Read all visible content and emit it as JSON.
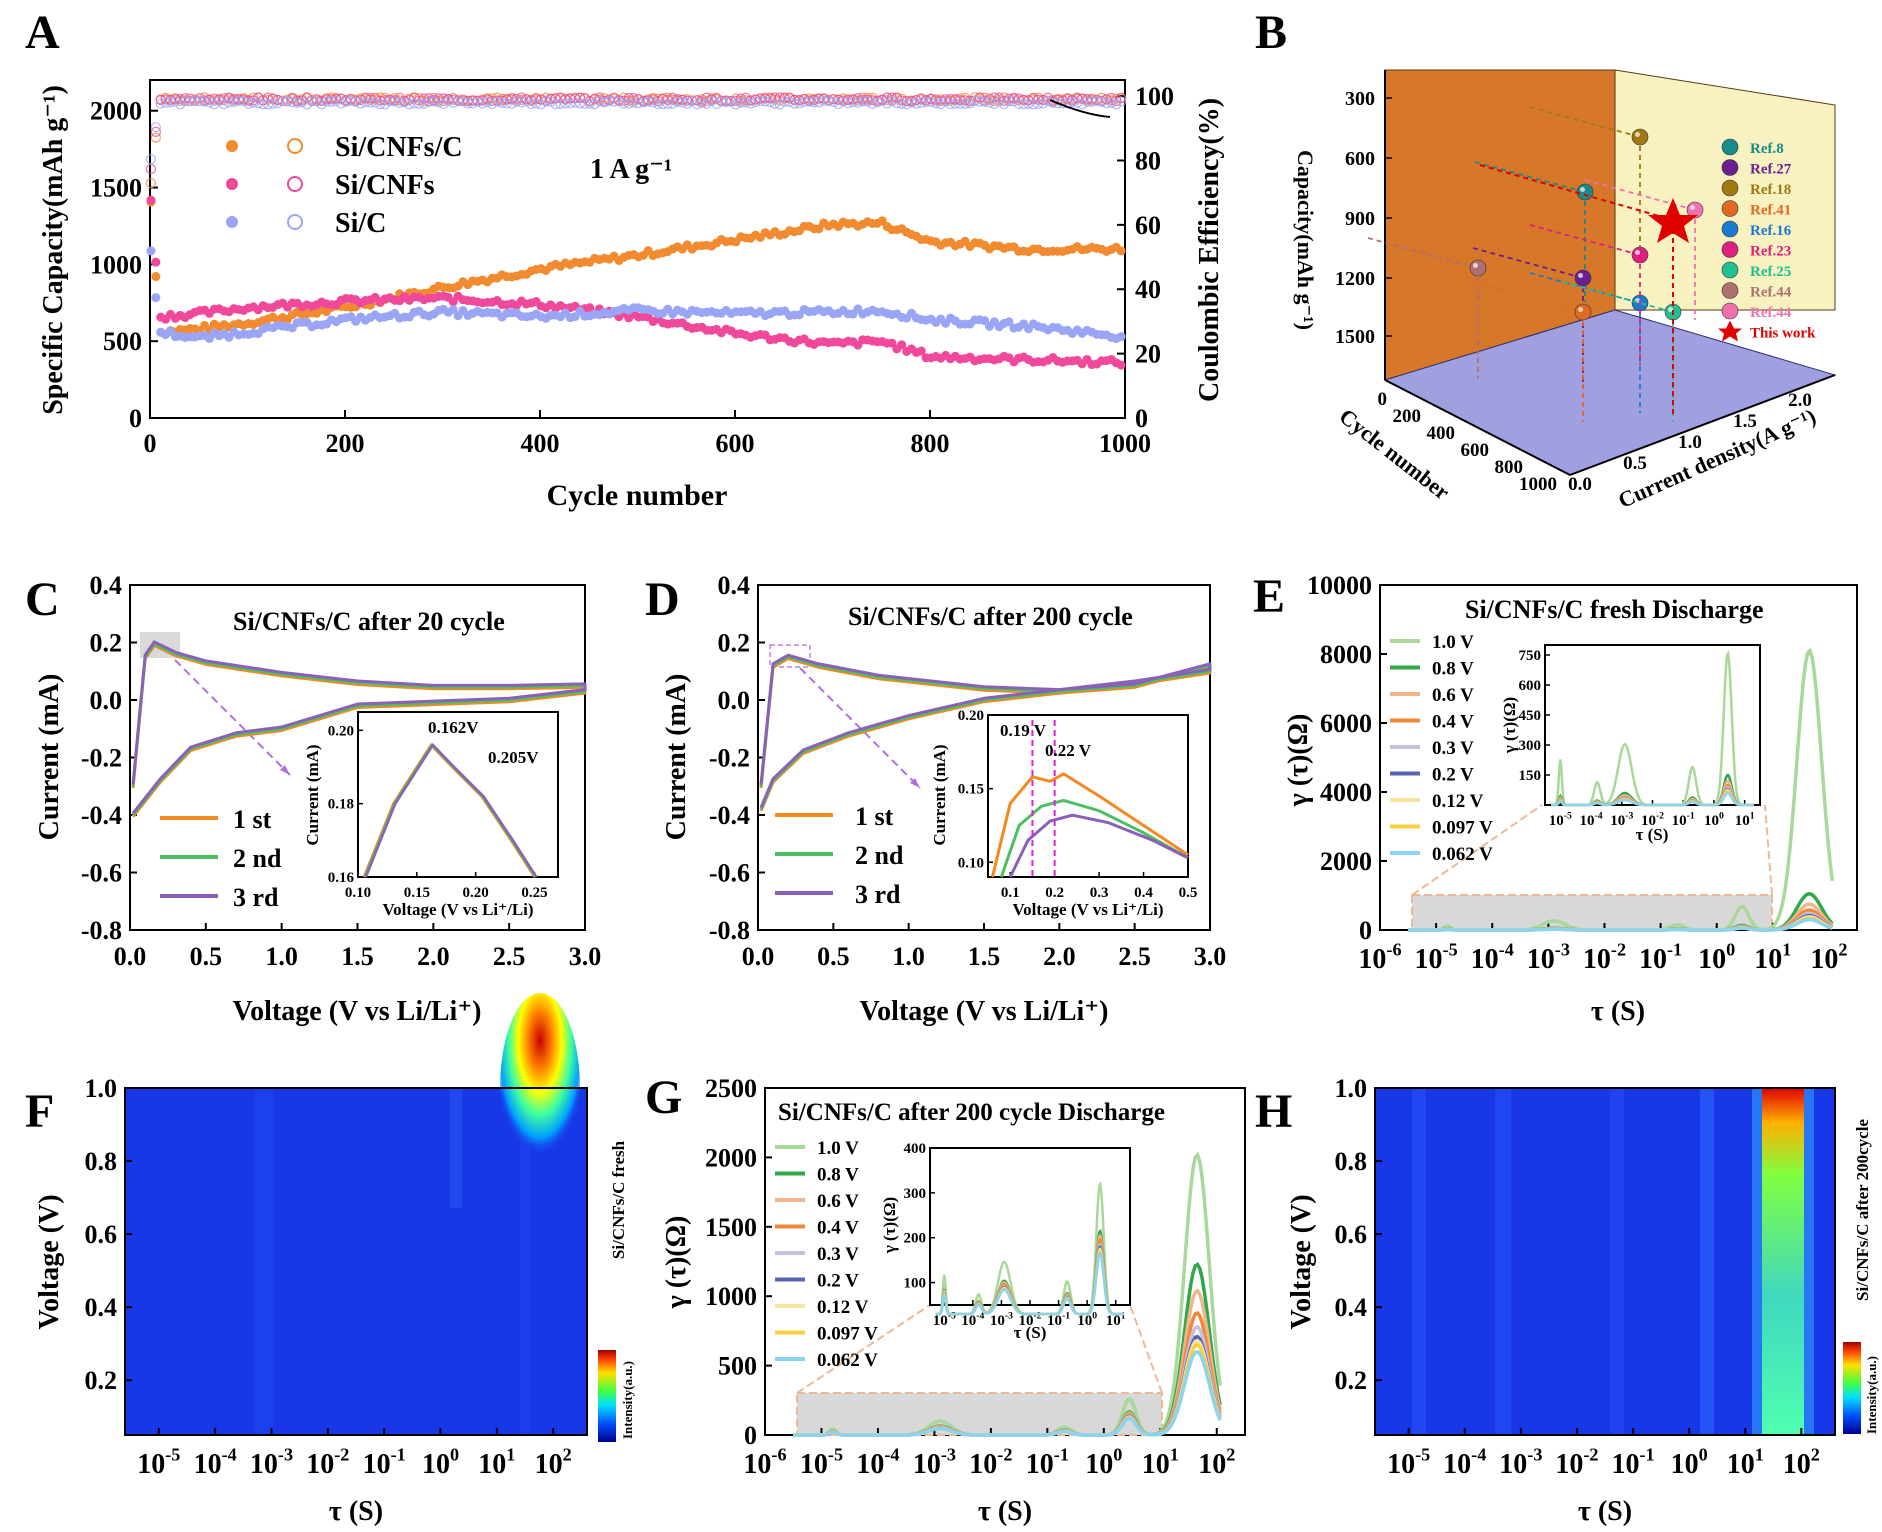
{
  "panels": {
    "A": {
      "letter": "A",
      "xlabel": "Cycle number",
      "ylabel_left": "Specific Capacity(mAh g⁻¹)",
      "ylabel_right": "Coulombic Efficiency(%)",
      "annotation": "1 A g⁻¹",
      "legend": [
        "Si/CNFs/C",
        "Si/CNFs",
        "Si/C"
      ]
    },
    "B": {
      "letter": "B",
      "zlabel": "Capacity(mAh g⁻¹)",
      "xlabel": "Cycle number",
      "ylabel": "Current density(A g⁻¹)",
      "legend": [
        "Ref.8",
        "Ref.27",
        "Ref.18",
        "Ref.41",
        "Ref.16",
        "Ref.23",
        "Ref.25",
        "Ref.44",
        "Ref.44",
        "This work"
      ]
    },
    "C": {
      "letter": "C",
      "title": "Si/CNFs/C after 20 cycle",
      "xlabel": "Voltage (V vs Li/Li⁺)",
      "ylabel": "Current (mA)",
      "legend": [
        "1 st",
        "2 nd",
        "3 rd"
      ],
      "inset_xlabel": "Voltage (V vs Li⁺/Li)",
      "inset_ylabel": "Current (mA)",
      "inset_ann": [
        "0.162V",
        "0.205V"
      ]
    },
    "D": {
      "letter": "D",
      "title": "Si/CNFs/C after 200 cycle",
      "xlabel": "Voltage (V vs Li/Li⁺)",
      "ylabel": "Current (mA)",
      "legend": [
        "1 st",
        "2 nd",
        "3 rd"
      ],
      "inset_xlabel": "Voltage (V vs Li⁺/Li)",
      "inset_ylabel": "Current (mA)",
      "inset_ann": [
        "0.19 V",
        "0.22 V"
      ]
    },
    "E": {
      "letter": "E",
      "title": "Si/CNFs/C fresh Discharge",
      "xlabel": "τ (S)",
      "ylabel": "γ (τ)(Ω)",
      "legend": [
        "1.0 V",
        "0.8 V",
        "0.6 V",
        "0.4 V",
        "0.3 V",
        "0.2 V",
        "0.12 V",
        "0.097 V",
        "0.062 V"
      ],
      "inset_xlabel": "τ (S)",
      "inset_ylabel": "γ (τ)(Ω)"
    },
    "F": {
      "letter": "F",
      "xlabel": "τ (S)",
      "ylabel": "Voltage (V)",
      "side_label": "Si/CNFs/C fresh",
      "colorbar_label": "Intensity(a.u.)"
    },
    "G": {
      "letter": "G",
      "title": "Si/CNFs/C after 200 cycle Discharge",
      "xlabel": "τ (S)",
      "ylabel": "γ (τ)(Ω)",
      "legend": [
        "1.0 V",
        "0.8 V",
        "0.6 V",
        "0.4 V",
        "0.3 V",
        "0.2 V",
        "0.12 V",
        "0.097 V",
        "0.062 V"
      ],
      "inset_xlabel": "τ (S)",
      "inset_ylabel": "γ (τ)(Ω)"
    },
    "H": {
      "letter": "H",
      "xlabel": "τ (S)",
      "ylabel": "Voltage (V)",
      "side_label": "Si/CNFs/C after 200cycle",
      "colorbar_label": "Intensity(a.u.)"
    }
  },
  "colors": {
    "sicnfsc": "#f28a30",
    "sicnfs": "#f0489a",
    "sic": "#9aa6f5",
    "cv1": "#f5891f",
    "cv2": "#4cc060",
    "cv3": "#8a60b8",
    "drt": [
      "#a8d89a",
      "#2ea84a",
      "#f2b48a",
      "#f0883a",
      "#c4c0dd",
      "#5a64b4",
      "#f8e6a0",
      "#f8d040",
      "#8ad4f2"
    ],
    "refs": [
      "#1a8a8a",
      "#6a2090",
      "#a07a10",
      "#e06a20",
      "#1a7ad0",
      "#e02080",
      "#20c090",
      "#b07070",
      "#f070b0"
    ]
  },
  "chart_data": [
    {
      "panel": "A",
      "type": "scatter",
      "title": "",
      "xlabel": "Cycle number",
      "ylabel": "Specific Capacity(mAh g-1)",
      "y2label": "Coulombic Efficiency(%)",
      "xlim": [
        0,
        1000
      ],
      "ylim": [
        0,
        2200
      ],
      "y2lim": [
        0,
        105
      ],
      "x": [
        0,
        10,
        50,
        100,
        200,
        300,
        400,
        500,
        600,
        700,
        750,
        800,
        900,
        1000
      ],
      "series": [
        {
          "name": "Si/CNFs/C",
          "values": [
            1500,
            560,
            580,
            620,
            720,
            850,
            970,
            1060,
            1160,
            1260,
            1270,
            1150,
            1100,
            1100
          ]
        },
        {
          "name": "Si/CNFs",
          "values": [
            1520,
            660,
            680,
            720,
            760,
            780,
            740,
            660,
            550,
            480,
            500,
            400,
            380,
            360
          ]
        },
        {
          "name": "Si/C",
          "values": [
            1130,
            560,
            520,
            560,
            640,
            690,
            660,
            700,
            680,
            690,
            700,
            640,
            600,
            530
          ]
        }
      ],
      "efficiency": {
        "Si/CNFs/C": [
          70,
          99,
          99,
          99,
          99,
          99,
          99,
          99,
          99,
          99,
          99,
          99,
          99,
          99
        ],
        "Si/CNFs": [
          75,
          99,
          99,
          99,
          99,
          99,
          99,
          99,
          99,
          99,
          99,
          99,
          99,
          99
        ],
        "Si/C": [
          78,
          98,
          98,
          98,
          98,
          98,
          98,
          98,
          98,
          98,
          98,
          98,
          98,
          98
        ]
      },
      "xticks": [
        "0",
        "200",
        "400",
        "600",
        "800",
        "1000"
      ],
      "yticks": [
        "0",
        "500",
        "1000",
        "1500",
        "2000"
      ],
      "y2ticks": [
        "0",
        "20",
        "40",
        "60",
        "80",
        "100"
      ]
    },
    {
      "panel": "B",
      "type": "scatter",
      "title": "",
      "zlabel": "Capacity(mAh g-1)",
      "points": [
        {
          "name": "Ref.8",
          "capacity": 1030
        },
        {
          "name": "Ref.27",
          "capacity": 600
        },
        {
          "name": "Ref.18",
          "capacity": 1300
        },
        {
          "name": "Ref.41",
          "capacity": 400
        },
        {
          "name": "Ref.16",
          "capacity": 450
        },
        {
          "name": "Ref.23",
          "capacity": 700
        },
        {
          "name": "Ref.25",
          "capacity": 400
        },
        {
          "name": "Ref.44",
          "capacity": 640
        },
        {
          "name": "Ref.44",
          "capacity": 900
        },
        {
          "name": "This work",
          "capacity": 880
        }
      ],
      "zticks": [
        "300",
        "600",
        "900",
        "1200",
        "1500"
      ],
      "xticks": [
        "0",
        "200",
        "400",
        "600",
        "800",
        "1000"
      ],
      "yticks": [
        "0.0",
        "0.5",
        "1.0",
        "1.5",
        "2.0"
      ]
    },
    {
      "panel": "C",
      "type": "line",
      "title": "Si/CNFs/C after 20 cycle",
      "xlabel": "Voltage (V vs Li/Li+)",
      "ylabel": "Current (mA)",
      "xlim": [
        0,
        3
      ],
      "ylim": [
        -0.8,
        0.4
      ],
      "x_ox": [
        0.02,
        0.1,
        0.16,
        0.3,
        0.5,
        1.0,
        1.5,
        2.0,
        2.5,
        3.0
      ],
      "y_ox": [
        -0.3,
        0.15,
        0.196,
        0.16,
        0.13,
        0.09,
        0.06,
        0.045,
        0.045,
        0.05
      ],
      "x_red": [
        3.0,
        2.5,
        2.0,
        1.5,
        1.0,
        0.7,
        0.4,
        0.2,
        0.05,
        0.02
      ],
      "y_red": [
        0.03,
        0.0,
        -0.01,
        -0.02,
        -0.1,
        -0.12,
        -0.17,
        -0.28,
        -0.38,
        -0.4
      ],
      "series": [
        {
          "name": "1 st"
        },
        {
          "name": "2 nd"
        },
        {
          "name": "3 rd"
        }
      ],
      "xticks": [
        "0.0",
        "0.5",
        "1.0",
        "1.5",
        "2.0",
        "2.5",
        "3.0"
      ],
      "yticks": [
        "0.4",
        "0.2",
        "0.0",
        "-0.2",
        "-0.4",
        "-0.6",
        "-0.8"
      ],
      "inset": {
        "xlim": [
          0.1,
          0.27
        ],
        "ylim": [
          0.16,
          0.205
        ],
        "x": [
          0.105,
          0.13,
          0.162,
          0.18,
          0.205,
          0.23,
          0.25
        ],
        "y": [
          0.16,
          0.18,
          0.196,
          0.19,
          0.182,
          0.17,
          0.16
        ],
        "xticks": [
          "0.10",
          "0.15",
          "0.20",
          "0.25"
        ],
        "yticks": [
          "0.16",
          "0.18",
          "0.20"
        ]
      }
    },
    {
      "panel": "D",
      "type": "line",
      "title": "Si/CNFs/C after 200 cycle",
      "xlabel": "Voltage (V vs Li/Li+)",
      "ylabel": "Current (mA)",
      "xlim": [
        0,
        3
      ],
      "ylim": [
        -0.8,
        0.4
      ],
      "x_ox": [
        0.02,
        0.1,
        0.2,
        0.4,
        0.8,
        1.5,
        2.0,
        2.5,
        3.0
      ],
      "y_ox": [
        -0.3,
        0.12,
        0.15,
        0.12,
        0.08,
        0.04,
        0.03,
        0.05,
        0.12
      ],
      "x_red": [
        3.0,
        2.5,
        2.0,
        1.5,
        1.0,
        0.6,
        0.3,
        0.1,
        0.02
      ],
      "y_red": [
        0.1,
        0.06,
        0.03,
        0.0,
        -0.06,
        -0.12,
        -0.18,
        -0.28,
        -0.38
      ],
      "series": [
        {
          "name": "1 st"
        },
        {
          "name": "2 nd"
        },
        {
          "name": "3 rd"
        }
      ],
      "xticks": [
        "0.0",
        "0.5",
        "1.0",
        "1.5",
        "2.0",
        "2.5",
        "3.0"
      ],
      "yticks": [
        "0.4",
        "0.2",
        "0.0",
        "-0.2",
        "-0.4",
        "-0.6",
        "-0.8"
      ],
      "inset": {
        "xlim": [
          0.05,
          0.5
        ],
        "ylim": [
          0.09,
          0.2
        ],
        "xticks": [
          "0.1",
          "0.2",
          "0.3",
          "0.4",
          "0.5"
        ],
        "yticks": [
          "0.10",
          "0.15",
          "0.20"
        ],
        "series": [
          {
            "x": [
              0.06,
              0.1,
              0.15,
              0.19,
              0.22,
              0.3,
              0.4,
              0.5
            ],
            "y": [
              0.09,
              0.14,
              0.158,
              0.155,
              0.16,
              0.145,
              0.125,
              0.105
            ]
          },
          {
            "x": [
              0.08,
              0.12,
              0.17,
              0.22,
              0.3,
              0.4,
              0.5
            ],
            "y": [
              0.09,
              0.125,
              0.138,
              0.142,
              0.135,
              0.12,
              0.103
            ]
          },
          {
            "x": [
              0.1,
              0.14,
              0.19,
              0.24,
              0.32,
              0.42,
              0.5
            ],
            "y": [
              0.09,
              0.115,
              0.128,
              0.132,
              0.127,
              0.115,
              0.103
            ]
          }
        ]
      }
    },
    {
      "panel": "E",
      "type": "line",
      "title": "Si/CNFs/C fresh Discharge",
      "xlabel": "tau (S)",
      "ylabel": "gamma(tau)(Ohm)",
      "xlim": [
        -6,
        2.5
      ],
      "ylim": [
        0,
        10000
      ],
      "peaks_main": [
        8100,
        1050,
        750,
        580,
        480,
        420,
        380,
        340,
        300
      ],
      "xticks": [
        "-6",
        "-5",
        "-4",
        "-3",
        "-2",
        "-1",
        "0",
        "1",
        "2"
      ],
      "yticks": [
        "0",
        "2000",
        "4000",
        "6000",
        "8000",
        "10000"
      ],
      "inset": {
        "ylim": [
          0,
          800
        ],
        "peaks": [
          760,
          150,
          120,
          100,
          90,
          80,
          75,
          70,
          60
        ],
        "yticks": [
          "150",
          "300",
          "450",
          "600",
          "750"
        ]
      }
    },
    {
      "panel": "F",
      "type": "heatmap",
      "xlabel": "tau (S)",
      "ylabel": "Voltage (V)",
      "yticks": [
        "1.0",
        "0.8",
        "0.6",
        "0.4",
        "0.2"
      ],
      "xticks": [
        "-5",
        "-4",
        "-3",
        "-2",
        "-1",
        "0",
        "1",
        "2"
      ]
    },
    {
      "panel": "G",
      "type": "line",
      "title": "Si/CNFs/C after 200 cycle Discharge",
      "xlabel": "tau (S)",
      "ylabel": "gamma(tau)(Ohm)",
      "xlim": [
        -6,
        2.5
      ],
      "ylim": [
        0,
        2500
      ],
      "peaks_main": [
        2020,
        1230,
        1040,
        880,
        780,
        710,
        680,
        650,
        600
      ],
      "xticks": [
        "-6",
        "-5",
        "-4",
        "-3",
        "-2",
        "-1",
        "0",
        "1",
        "2"
      ],
      "yticks": [
        "0",
        "500",
        "1000",
        "1500",
        "2000",
        "2500"
      ],
      "inset": {
        "ylim": [
          50,
          400
        ],
        "peaks": [
          290,
          185,
          175,
          165,
          155,
          150,
          145,
          140,
          135
        ],
        "yticks": [
          "100",
          "200",
          "300",
          "400"
        ]
      }
    },
    {
      "panel": "H",
      "type": "heatmap",
      "xlabel": "tau (S)",
      "ylabel": "Voltage (V)",
      "yticks": [
        "1.0",
        "0.8",
        "0.6",
        "0.4",
        "0.2"
      ],
      "xticks": [
        "-5",
        "-4",
        "-3",
        "-2",
        "-1",
        "0",
        "1",
        "2"
      ]
    }
  ]
}
